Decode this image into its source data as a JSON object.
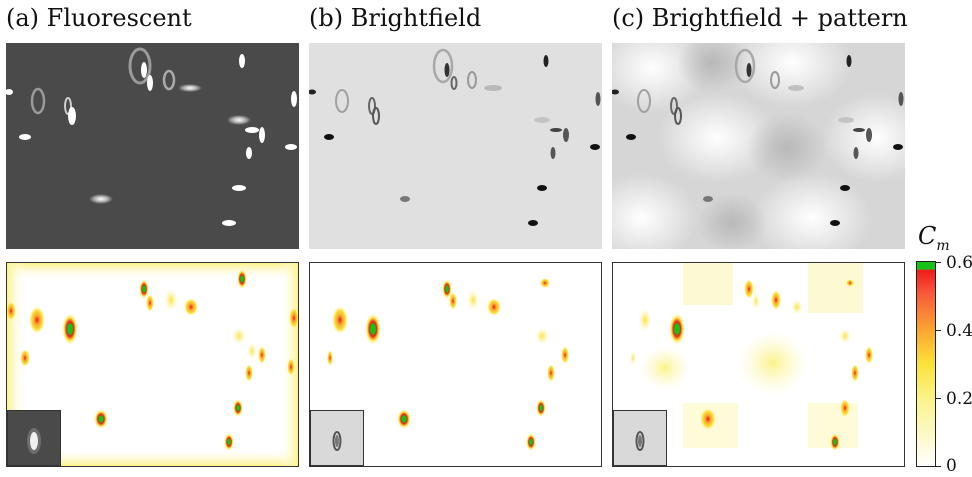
{
  "panels": [
    {
      "label": "(a) Fluorescent"
    },
    {
      "label": "(b) Brightfield"
    },
    {
      "label": "(c) Brightfield + pattern"
    }
  ],
  "colorbar": {
    "title_symbol": "C",
    "title_subscript": "m",
    "ticks": [
      "0",
      "0.2",
      "0.4",
      "0.6"
    ],
    "colors": [
      "#ffffff",
      "#fbf38a",
      "#fba830",
      "#ef1c1c",
      "#16c21a"
    ]
  },
  "colors": {
    "fluorescent_bg": "#4a4a4a",
    "brightfield_bg": "#e0e0e0",
    "cell_dark": "#1a1a1a",
    "cell_bright": "#ffffff"
  }
}
